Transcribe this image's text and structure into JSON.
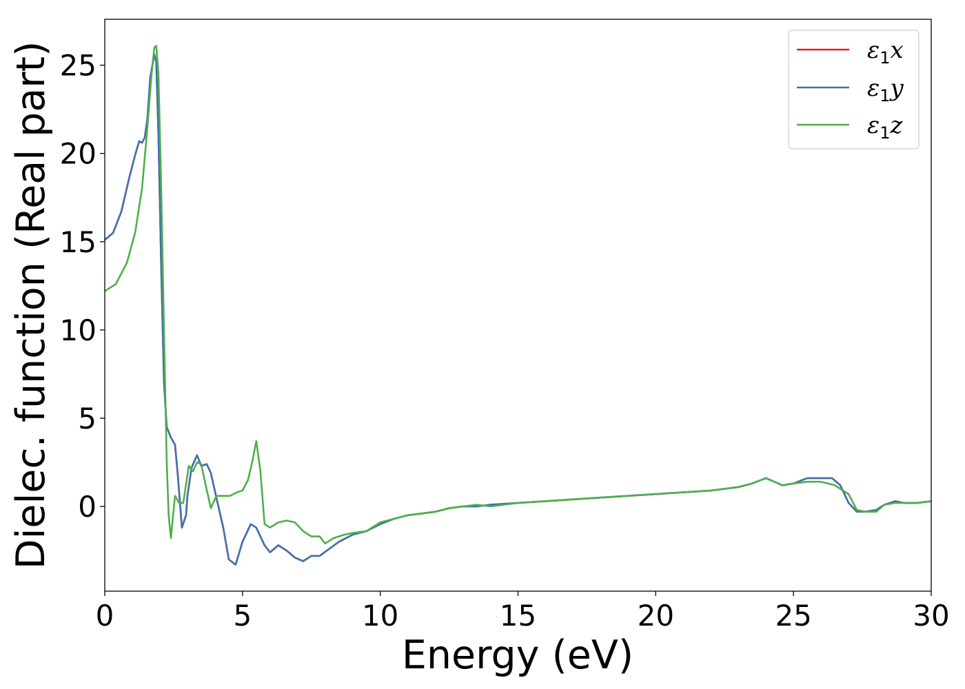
{
  "chart_data": {
    "type": "line",
    "xlabel": "Energy (eV)",
    "ylabel": "Dielec. function (Real part)",
    "xlim": [
      0,
      30
    ],
    "ylim": [
      -4.8,
      27.6
    ],
    "xticks": [
      0,
      5,
      10,
      15,
      20,
      25,
      30
    ],
    "yticks": [
      0,
      5,
      10,
      15,
      20,
      25
    ],
    "legend_position": "top-right",
    "grid": false,
    "series": [
      {
        "name": "ε1x",
        "legend_main": "ε",
        "legend_sub": "1",
        "legend_tail": "x",
        "color": "#e41a1c",
        "x": [
          0,
          0.3,
          0.6,
          0.9,
          1.1,
          1.25,
          1.35,
          1.45,
          1.55,
          1.65,
          1.8,
          1.87,
          1.95,
          2.05,
          2.15,
          2.25,
          2.4,
          2.55,
          2.65,
          2.8,
          2.95,
          3.0,
          3.15,
          3.35,
          3.5,
          3.7,
          3.85,
          4.05,
          4.3,
          4.5,
          4.75,
          5.0,
          5.3,
          5.5,
          5.8,
          6.0,
          6.3,
          6.6,
          6.9,
          7.2,
          7.5,
          7.8,
          8.5,
          9.0,
          9.5,
          10.0,
          10.5,
          11.0,
          11.5,
          12.0,
          12.5,
          13.0,
          13.5,
          14.0,
          15.0,
          16.0,
          17.0,
          18.0,
          19.0,
          20.0,
          21.0,
          22.0,
          23.0,
          23.5,
          24.0,
          24.3,
          24.6,
          25.0,
          25.5,
          26.0,
          26.4,
          26.7,
          27.0,
          27.3,
          27.6,
          28.0,
          28.3,
          28.7,
          29.0,
          29.5,
          30.0
        ],
        "y": [
          15.1,
          15.5,
          16.7,
          18.7,
          19.9,
          20.7,
          20.6,
          20.9,
          22.0,
          24.3,
          25.6,
          25.2,
          21.0,
          13.5,
          7.0,
          4.5,
          3.9,
          3.5,
          1.8,
          -1.2,
          -0.5,
          0.6,
          2.2,
          2.9,
          2.3,
          2.4,
          1.9,
          0.5,
          -1.2,
          -3.0,
          -3.3,
          -2.0,
          -1.0,
          -1.2,
          -2.2,
          -2.6,
          -2.2,
          -2.5,
          -2.9,
          -3.1,
          -2.8,
          -2.8,
          -2.0,
          -1.6,
          -1.4,
          -1.0,
          -0.7,
          -0.5,
          -0.4,
          -0.3,
          -0.1,
          0.0,
          0.0,
          0.1,
          0.2,
          0.3,
          0.4,
          0.5,
          0.6,
          0.7,
          0.8,
          0.9,
          1.1,
          1.3,
          1.6,
          1.4,
          1.2,
          1.3,
          1.6,
          1.6,
          1.6,
          1.2,
          0.2,
          -0.3,
          -0.3,
          -0.2,
          0.1,
          0.3,
          0.2,
          0.2,
          0.3
        ]
      },
      {
        "name": "ε1y",
        "legend_main": "ε",
        "legend_sub": "1",
        "legend_tail": "y",
        "color": "#3f73ad",
        "x": [
          0,
          0.3,
          0.6,
          0.9,
          1.1,
          1.25,
          1.35,
          1.45,
          1.55,
          1.65,
          1.8,
          1.87,
          1.95,
          2.05,
          2.15,
          2.25,
          2.4,
          2.55,
          2.65,
          2.8,
          2.95,
          3.0,
          3.15,
          3.35,
          3.5,
          3.7,
          3.85,
          4.05,
          4.3,
          4.5,
          4.75,
          5.0,
          5.3,
          5.5,
          5.8,
          6.0,
          6.3,
          6.6,
          6.9,
          7.2,
          7.5,
          7.8,
          8.5,
          9.0,
          9.5,
          10.0,
          10.5,
          11.0,
          11.5,
          12.0,
          12.5,
          13.0,
          13.5,
          14.0,
          15.0,
          16.0,
          17.0,
          18.0,
          19.0,
          20.0,
          21.0,
          22.0,
          23.0,
          23.5,
          24.0,
          24.3,
          24.6,
          25.0,
          25.5,
          26.0,
          26.4,
          26.7,
          27.0,
          27.3,
          27.6,
          28.0,
          28.3,
          28.7,
          29.0,
          29.5,
          30.0
        ],
        "y": [
          15.1,
          15.5,
          16.7,
          18.7,
          19.9,
          20.7,
          20.6,
          20.9,
          22.0,
          24.3,
          25.6,
          25.2,
          21.0,
          13.5,
          7.0,
          4.5,
          3.9,
          3.5,
          1.8,
          -1.2,
          -0.5,
          0.6,
          2.2,
          2.9,
          2.3,
          2.4,
          1.9,
          0.5,
          -1.2,
          -3.0,
          -3.3,
          -2.0,
          -1.0,
          -1.2,
          -2.2,
          -2.6,
          -2.2,
          -2.5,
          -2.9,
          -3.1,
          -2.8,
          -2.8,
          -2.0,
          -1.6,
          -1.4,
          -1.0,
          -0.7,
          -0.5,
          -0.4,
          -0.3,
          -0.1,
          0.0,
          0.0,
          0.1,
          0.2,
          0.3,
          0.4,
          0.5,
          0.6,
          0.7,
          0.8,
          0.9,
          1.1,
          1.3,
          1.6,
          1.4,
          1.2,
          1.3,
          1.6,
          1.6,
          1.6,
          1.2,
          0.2,
          -0.3,
          -0.3,
          -0.2,
          0.1,
          0.3,
          0.2,
          0.2,
          0.3
        ]
      },
      {
        "name": "ε1z",
        "legend_main": "ε",
        "legend_sub": "1",
        "legend_tail": "z",
        "color": "#4daf4a",
        "x": [
          0,
          0.4,
          0.8,
          1.1,
          1.35,
          1.55,
          1.7,
          1.8,
          1.87,
          1.95,
          2.05,
          2.15,
          2.25,
          2.32,
          2.4,
          2.55,
          2.7,
          2.85,
          3.05,
          3.2,
          3.35,
          3.5,
          3.65,
          3.85,
          4.05,
          4.3,
          4.55,
          4.8,
          5.0,
          5.2,
          5.35,
          5.5,
          5.65,
          5.8,
          6.0,
          6.3,
          6.6,
          6.9,
          7.2,
          7.5,
          7.8,
          8.0,
          8.3,
          8.7,
          9.0,
          9.5,
          10.0,
          10.5,
          11.0,
          11.5,
          12.0,
          12.5,
          13.0,
          13.5,
          14.0,
          15.0,
          16.0,
          17.0,
          18.0,
          19.0,
          20.0,
          21.0,
          22.0,
          23.0,
          23.5,
          24.0,
          24.3,
          24.6,
          25.0,
          25.5,
          26.0,
          26.5,
          27.0,
          27.3,
          27.6,
          28.0,
          28.3,
          28.7,
          29.0,
          29.5,
          30.0
        ],
        "y": [
          12.2,
          12.6,
          13.8,
          15.5,
          18.0,
          21.5,
          24.5,
          26.0,
          26.1,
          24.5,
          18.0,
          10.0,
          2.5,
          -0.5,
          -1.8,
          0.6,
          0.2,
          0.2,
          2.3,
          2.0,
          2.5,
          2.4,
          1.3,
          -0.1,
          0.6,
          0.6,
          0.6,
          0.8,
          0.9,
          1.5,
          2.5,
          3.7,
          2.0,
          -1.0,
          -1.2,
          -0.9,
          -0.8,
          -0.9,
          -1.4,
          -1.7,
          -1.7,
          -2.1,
          -1.8,
          -1.6,
          -1.5,
          -1.4,
          -0.9,
          -0.7,
          -0.5,
          -0.4,
          -0.3,
          -0.1,
          0.0,
          0.1,
          0.0,
          0.2,
          0.3,
          0.4,
          0.5,
          0.6,
          0.7,
          0.8,
          0.9,
          1.1,
          1.3,
          1.6,
          1.4,
          1.2,
          1.3,
          1.4,
          1.4,
          1.2,
          0.7,
          -0.2,
          -0.3,
          -0.3,
          0.1,
          0.2,
          0.2,
          0.2,
          0.3
        ]
      }
    ]
  }
}
